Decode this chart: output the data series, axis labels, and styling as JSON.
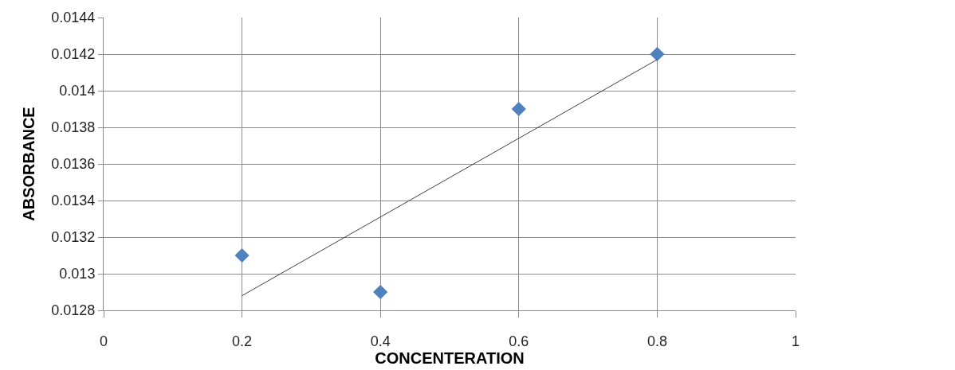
{
  "chart_data": {
    "type": "scatter",
    "xlabel": "CONCENTERATION",
    "ylabel": "ABSORBANCE",
    "x": [
      0.2,
      0.4,
      0.6,
      0.8
    ],
    "series": [
      {
        "color": "#4f81bd",
        "marker": "diamond",
        "values": [
          0.0131,
          0.0129,
          0.0139,
          0.0142
        ]
      },
      {
        "type": "line",
        "color": "#404040",
        "marker": "none",
        "x": [
          0.2,
          0.8
        ],
        "values": [
          0.01288,
          0.01417
        ]
      }
    ],
    "xlim": [
      0,
      1
    ],
    "xticks": [
      0,
      0.2,
      0.4,
      0.6,
      0.8,
      1
    ],
    "ylim": [
      0.0128,
      0.0144
    ],
    "yticks": [
      0.0128,
      0.013,
      0.0132,
      0.0134,
      0.0136,
      0.0138,
      0.014,
      0.0142,
      0.0144
    ],
    "grid": true
  }
}
